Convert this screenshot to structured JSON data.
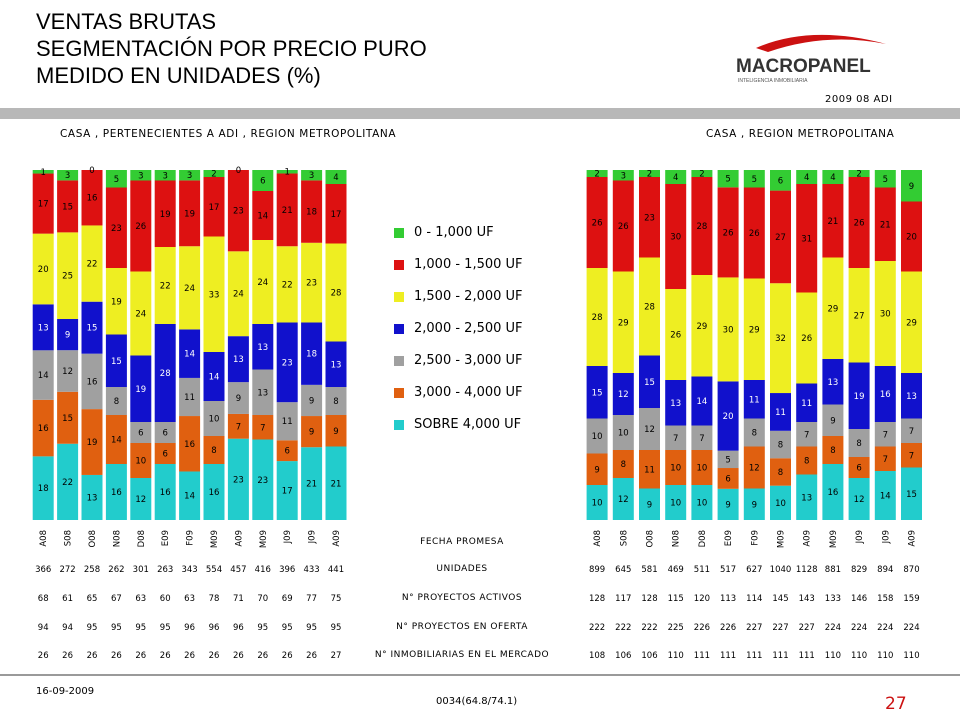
{
  "header": {
    "title_lines": [
      "VENTAS BRUTAS",
      "SEGMENTACIÓN POR PRECIO PURO",
      "MEDIDO EN UNIDADES (%)"
    ],
    "logo_text": "MACROPANEL",
    "logo_tagline": "INTELIGENCIA INMOBILIARIA",
    "logo_sub": "2009 08 ADI"
  },
  "footer": {
    "date": "16-09-2009",
    "code": "0034(64.8/74.1)",
    "page": "27"
  },
  "row_labels": {
    "fecha": "FECHA PROMESA",
    "unidades": "UNIDADES",
    "activos": "N° PROYECTOS ACTIVOS",
    "oferta": "N° PROYECTOS EN OFERTA",
    "inmobiliarias": "N° INMOBILIARIAS EN EL MERCADO"
  },
  "chart_data": [
    {
      "type": "bar",
      "stacked": true,
      "title": "CASA , PERTENECIENTES A ADI , REGION METROPOLITANA",
      "categories": [
        "A08",
        "S08",
        "O08",
        "N08",
        "D08",
        "E09",
        "F09",
        "M09",
        "A09",
        "M09",
        "J09",
        "J09",
        "A09"
      ],
      "series": [
        {
          "name": "SOBRE 4,000 UF",
          "values": [
            18,
            22,
            13,
            16,
            12,
            16,
            14,
            16,
            23,
            23,
            17,
            21,
            21
          ]
        },
        {
          "name": "3,000 - 4,000 UF",
          "values": [
            16,
            15,
            19,
            14,
            10,
            6,
            16,
            8,
            7,
            7,
            6,
            9,
            9
          ]
        },
        {
          "name": "2,500 - 3,000 UF",
          "values": [
            14,
            12,
            16,
            8,
            6,
            6,
            11,
            10,
            9,
            13,
            11,
            9,
            8
          ]
        },
        {
          "name": "2,000 - 2,500 UF",
          "values": [
            13,
            9,
            15,
            15,
            19,
            28,
            14,
            14,
            13,
            13,
            23,
            18,
            13
          ]
        },
        {
          "name": "1,500 - 2,000 UF",
          "values": [
            20,
            25,
            22,
            19,
            24,
            22,
            24,
            33,
            24,
            24,
            22,
            23,
            28
          ]
        },
        {
          "name": "1,000 - 1,500 UF",
          "values": [
            17,
            15,
            16,
            23,
            26,
            19,
            19,
            17,
            23,
            14,
            21,
            18,
            17
          ]
        },
        {
          "name": "0 - 1,000 UF",
          "values": [
            1,
            3,
            0,
            5,
            3,
            3,
            3,
            2,
            0,
            6,
            1,
            3,
            4
          ]
        }
      ],
      "ylim": [
        0,
        100
      ],
      "unidades": [
        366,
        272,
        258,
        262,
        301,
        263,
        343,
        554,
        457,
        416,
        396,
        433,
        441
      ],
      "proyectos_activos": [
        68,
        61,
        65,
        67,
        63,
        60,
        63,
        78,
        71,
        70,
        69,
        77,
        75
      ],
      "proyectos_oferta": [
        94,
        94,
        95,
        95,
        95,
        95,
        96,
        96,
        96,
        95,
        95,
        95,
        95
      ],
      "inmobiliarias": [
        26,
        26,
        26,
        26,
        26,
        26,
        26,
        26,
        26,
        26,
        26,
        26,
        27
      ]
    },
    {
      "type": "bar",
      "stacked": true,
      "title": "CASA , REGION METROPOLITANA",
      "categories": [
        "A08",
        "S08",
        "O08",
        "N08",
        "D08",
        "E09",
        "F09",
        "M09",
        "A09",
        "M09",
        "J09",
        "J09",
        "A09"
      ],
      "series": [
        {
          "name": "SOBRE 4,000 UF",
          "values": [
            10,
            12,
            9,
            10,
            10,
            9,
            9,
            10,
            13,
            16,
            12,
            14,
            15
          ]
        },
        {
          "name": "3,000 - 4,000 UF",
          "values": [
            9,
            8,
            11,
            10,
            10,
            6,
            12,
            8,
            8,
            8,
            6,
            7,
            7
          ]
        },
        {
          "name": "2,500 - 3,000 UF",
          "values": [
            10,
            10,
            12,
            7,
            7,
            5,
            8,
            8,
            7,
            9,
            8,
            7,
            7
          ]
        },
        {
          "name": "2,000 - 2,500 UF",
          "values": [
            15,
            12,
            15,
            13,
            14,
            20,
            11,
            11,
            11,
            13,
            19,
            16,
            13
          ]
        },
        {
          "name": "1,500 - 2,000 UF",
          "values": [
            28,
            29,
            28,
            26,
            29,
            30,
            29,
            32,
            26,
            29,
            27,
            30,
            29
          ]
        },
        {
          "name": "1,000 - 1,500 UF",
          "values": [
            26,
            26,
            23,
            30,
            28,
            26,
            26,
            27,
            31,
            21,
            26,
            21,
            20
          ]
        },
        {
          "name": "0 - 1,000 UF",
          "values": [
            2,
            3,
            2,
            4,
            2,
            5,
            5,
            6,
            4,
            4,
            2,
            5,
            9
          ]
        }
      ],
      "ylim": [
        0,
        100
      ],
      "unidades": [
        899,
        645,
        581,
        469,
        511,
        517,
        627,
        1040,
        1128,
        881,
        829,
        894,
        870
      ],
      "proyectos_activos": [
        128,
        117,
        128,
        115,
        120,
        113,
        114,
        145,
        143,
        133,
        146,
        158,
        159
      ],
      "proyectos_oferta": [
        222,
        222,
        222,
        225,
        226,
        226,
        227,
        227,
        227,
        224,
        224,
        224,
        224
      ],
      "inmobiliarias": [
        108,
        106,
        106,
        110,
        111,
        111,
        111,
        111,
        111,
        110,
        110,
        110,
        110
      ]
    }
  ],
  "legend": {
    "items": [
      {
        "label": "0 - 1,000 UF",
        "color": "#33cc33"
      },
      {
        "label": "1,000 - 1,500 UF",
        "color": "#dd1111"
      },
      {
        "label": "1,500 - 2,000 UF",
        "color": "#eeee22"
      },
      {
        "label": "2,000 - 2,500 UF",
        "color": "#1111cc"
      },
      {
        "label": "2,500 - 3,000 UF",
        "color": "#a0a0a0"
      },
      {
        "label": "3,000 - 4,000 UF",
        "color": "#e06010"
      },
      {
        "label": "SOBRE 4,000 UF",
        "color": "#22cccc"
      }
    ]
  },
  "colors": {
    "0 - 1,000 UF": "#33cc33",
    "1,000 - 1,500 UF": "#dd1111",
    "1,500 - 2,000 UF": "#eeee22",
    "2,000 - 2,500 UF": "#1111cc",
    "2,500 - 3,000 UF": "#a0a0a0",
    "3,000 - 4,000 UF": "#e06010",
    "SOBRE 4,000 UF": "#22cccc",
    "accent_red": "#cc1111"
  }
}
